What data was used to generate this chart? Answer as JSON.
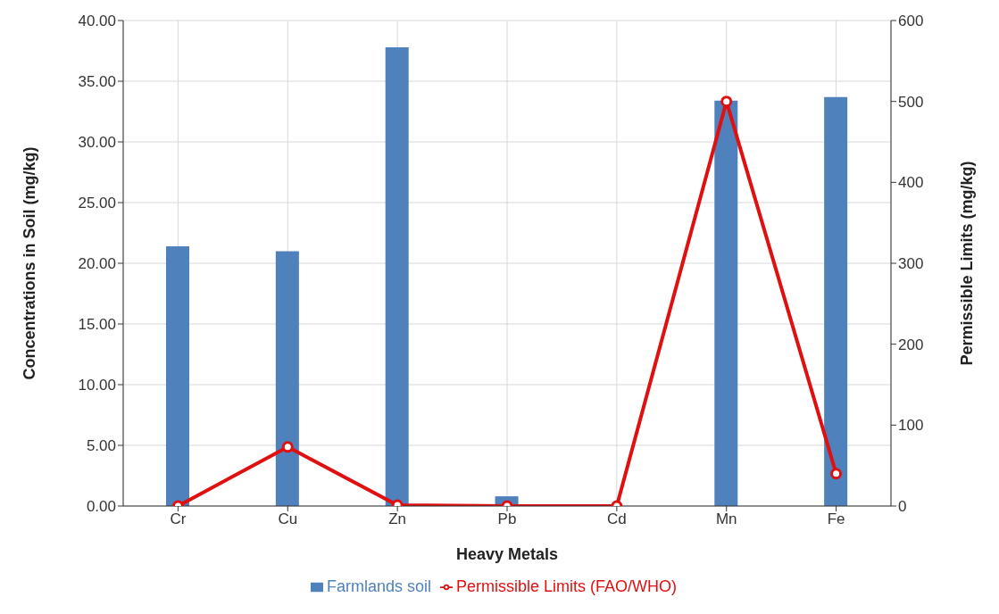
{
  "chart_data": {
    "type": "bar",
    "xlabel": "Heavy Metals",
    "ylabel": "Concentrations in Soil (mg/kg)",
    "y2label": "Permissible Limits (mg/kg)",
    "categories": [
      "Cr",
      "Cu",
      "Zn",
      "Pb",
      "Cd",
      "Mn",
      "Fe"
    ],
    "series": [
      {
        "name": "Farmlands soil",
        "color": "#4f81bd",
        "values": [
          21.4,
          21.0,
          37.8,
          0.8,
          0,
          33.4,
          33.7
        ]
      },
      {
        "name": "Permissible Limits (FAO/WHO)",
        "type": "line",
        "axis": "y2",
        "color": "#e01010",
        "marker": "circle",
        "values": [
          0,
          73,
          1,
          0,
          0,
          500,
          40
        ]
      }
    ],
    "ylim": [
      0,
      40
    ],
    "yticks": [
      {
        "value": 0,
        "label": "0.00"
      },
      {
        "value": 5,
        "label": "5.00"
      },
      {
        "value": 10,
        "label": "10.00"
      },
      {
        "value": 15,
        "label": "15.00"
      },
      {
        "value": 20,
        "label": "20.00"
      },
      {
        "value": 25,
        "label": "25.00"
      },
      {
        "value": 30,
        "label": "30.00"
      },
      {
        "value": 35,
        "label": "35.00"
      },
      {
        "value": 40,
        "label": "40.00"
      }
    ],
    "y2lim": [
      0,
      600
    ],
    "y2ticks": [
      0,
      100,
      200,
      300,
      400,
      500,
      600
    ],
    "grid": true,
    "legend": "bottom"
  }
}
